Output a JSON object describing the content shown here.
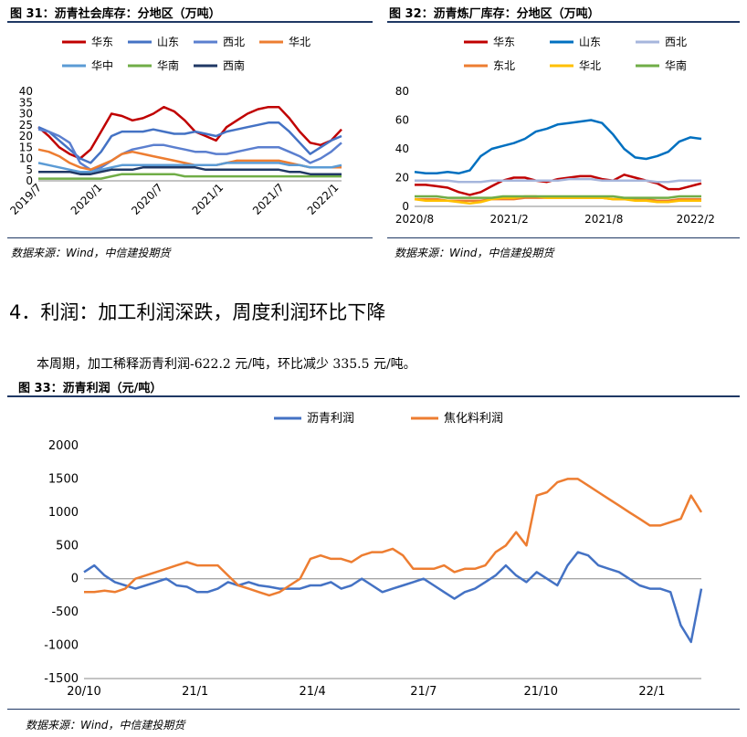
{
  "fig31": {
    "caption": "图 31：沥青社会库存：分地区（万吨）",
    "source": "数据来源：Wind，中信建投期货"
  },
  "fig32": {
    "caption": "图 32：沥青炼厂库存：分地区（万吨）",
    "source": "数据来源：Wind，中信建投期货"
  },
  "section": {
    "heading": "4．利润：加工利润深跌，周度利润环比下降",
    "body": "本周期，加工稀释沥青利润-622.2 元/吨，环比减少 335.5 元/吨。"
  },
  "fig33": {
    "caption": "图 33：沥青利润（元/吨）",
    "source": "数据来源：Wind，中信建投期货"
  },
  "chart_data": [
    {
      "type": "line",
      "id": "fig31",
      "x_ticks": [
        "2019/7",
        "2020/1",
        "2020/7",
        "2021/1",
        "2021/7",
        "2022/1"
      ],
      "ylim": [
        0,
        40
      ],
      "y_ticks": [
        "0",
        "5",
        "10",
        "15",
        "20",
        "25",
        "30",
        "35",
        "40"
      ],
      "legend_position": "top",
      "series": [
        {
          "name": "华东",
          "color": "#c00000",
          "values": [
            24,
            20,
            15,
            12,
            10,
            14,
            22,
            30,
            29,
            27,
            28,
            30,
            33,
            31,
            27,
            22,
            20,
            18,
            24,
            27,
            30,
            32,
            33,
            33,
            28,
            22,
            17,
            16,
            18,
            23
          ]
        },
        {
          "name": "山东",
          "color": "#4472c4",
          "values": [
            24,
            22,
            18,
            14,
            10,
            8,
            13,
            20,
            22,
            22,
            22,
            23,
            22,
            21,
            21,
            22,
            21,
            20,
            22,
            23,
            24,
            25,
            26,
            26,
            22,
            17,
            12,
            15,
            18,
            20
          ]
        },
        {
          "name": "西北",
          "color": "#5b7fcf",
          "values": [
            23,
            22,
            20,
            17,
            8,
            5,
            6,
            9,
            12,
            14,
            15,
            16,
            16,
            15,
            14,
            13,
            13,
            12,
            12,
            13,
            14,
            15,
            15,
            15,
            13,
            11,
            8,
            10,
            13,
            17
          ]
        },
        {
          "name": "华北",
          "color": "#ed7d31",
          "values": [
            14,
            13,
            11,
            8,
            6,
            5,
            7,
            9,
            12,
            13,
            12,
            11,
            10,
            9,
            8,
            7,
            7,
            7,
            8,
            9,
            9,
            9,
            9,
            9,
            8,
            7,
            6,
            6,
            6,
            6
          ]
        },
        {
          "name": "华中",
          "color": "#5b9bd5",
          "values": [
            8,
            7,
            6,
            5,
            4,
            4,
            5,
            6,
            7,
            7,
            7,
            7,
            7,
            7,
            7,
            7,
            7,
            7,
            8,
            8,
            8,
            8,
            8,
            8,
            7,
            7,
            6,
            6,
            6,
            7
          ]
        },
        {
          "name": "华南",
          "color": "#70ad47",
          "values": [
            1,
            1,
            1,
            1,
            1,
            1,
            1,
            2,
            3,
            3,
            3,
            3,
            3,
            3,
            2,
            2,
            2,
            2,
            2,
            2,
            2,
            2,
            2,
            2,
            2,
            2,
            2,
            2,
            2,
            2
          ]
        },
        {
          "name": "西南",
          "color": "#203864",
          "values": [
            4,
            4,
            4,
            4,
            3,
            3,
            4,
            5,
            5,
            5,
            6,
            6,
            6,
            6,
            6,
            6,
            5,
            5,
            5,
            5,
            5,
            5,
            5,
            5,
            4,
            4,
            3,
            3,
            3,
            3
          ]
        }
      ]
    },
    {
      "type": "line",
      "id": "fig32",
      "x_ticks": [
        "2020/8",
        "2021/2",
        "2021/8",
        "2022/2"
      ],
      "ylim": [
        0,
        80
      ],
      "y_ticks": [
        "0",
        "20",
        "40",
        "60",
        "80"
      ],
      "legend_position": "top",
      "series": [
        {
          "name": "华东",
          "color": "#c00000",
          "values": [
            15,
            15,
            14,
            13,
            10,
            8,
            10,
            14,
            18,
            20,
            20,
            18,
            17,
            19,
            20,
            21,
            21,
            19,
            18,
            22,
            20,
            18,
            16,
            12,
            12,
            14,
            16
          ]
        },
        {
          "name": "山东",
          "color": "#0070c0",
          "values": [
            24,
            23,
            23,
            24,
            23,
            25,
            35,
            40,
            42,
            44,
            47,
            52,
            54,
            57,
            58,
            59,
            60,
            58,
            50,
            40,
            34,
            33,
            35,
            38,
            45,
            48,
            47
          ]
        },
        {
          "name": "西北",
          "color": "#a6b6dc",
          "values": [
            18,
            18,
            18,
            18,
            17,
            17,
            17,
            18,
            18,
            18,
            18,
            18,
            18,
            18,
            19,
            19,
            19,
            18,
            18,
            18,
            18,
            18,
            17,
            17,
            18,
            18,
            18
          ]
        },
        {
          "name": "东北",
          "color": "#ed7d31",
          "values": [
            5,
            5,
            5,
            4,
            4,
            4,
            4,
            5,
            5,
            5,
            6,
            6,
            6,
            6,
            6,
            6,
            6,
            6,
            5,
            5,
            5,
            5,
            4,
            4,
            5,
            5,
            5
          ]
        },
        {
          "name": "华北",
          "color": "#ffc000",
          "values": [
            5,
            4,
            4,
            4,
            3,
            2,
            3,
            5,
            6,
            6,
            7,
            7,
            6,
            6,
            6,
            6,
            6,
            6,
            5,
            5,
            4,
            4,
            3,
            3,
            4,
            4,
            4
          ]
        },
        {
          "name": "华南",
          "color": "#70ad47",
          "values": [
            7,
            7,
            7,
            6,
            6,
            6,
            6,
            6,
            7,
            7,
            7,
            7,
            7,
            7,
            7,
            7,
            7,
            7,
            7,
            6,
            6,
            6,
            6,
            6,
            7,
            7,
            7
          ]
        }
      ]
    },
    {
      "type": "line",
      "id": "fig33",
      "x_ticks": [
        "20/10",
        "21/1",
        "21/4",
        "21/7",
        "21/10",
        "22/1"
      ],
      "ylim": [
        -1500,
        2000
      ],
      "y_ticks": [
        "-1500",
        "-1000",
        "-500",
        "0",
        "500",
        "1000",
        "1500",
        "2000"
      ],
      "legend_position": "top",
      "series": [
        {
          "name": "沥青利润",
          "color": "#4472c4",
          "values": [
            100,
            200,
            50,
            -50,
            -100,
            -150,
            -100,
            -50,
            0,
            -100,
            -120,
            -200,
            -200,
            -150,
            -50,
            -100,
            -50,
            -100,
            -120,
            -150,
            -150,
            -150,
            -100,
            -100,
            -50,
            -150,
            -100,
            0,
            -100,
            -200,
            -150,
            -100,
            -50,
            0,
            -100,
            -200,
            -300,
            -200,
            -150,
            -50,
            50,
            200,
            50,
            -50,
            100,
            0,
            -100,
            200,
            400,
            350,
            200,
            150,
            100,
            0,
            -100,
            -150,
            -150,
            -200,
            -700,
            -950,
            -150
          ]
        },
        {
          "name": "焦化料利润",
          "color": "#ed7d31",
          "values": [
            -200,
            -200,
            -180,
            -200,
            -150,
            0,
            50,
            100,
            150,
            200,
            250,
            200,
            200,
            200,
            50,
            -100,
            -150,
            -200,
            -250,
            -200,
            -100,
            0,
            300,
            350,
            300,
            300,
            250,
            350,
            400,
            400,
            450,
            350,
            150,
            150,
            150,
            200,
            100,
            150,
            150,
            200,
            400,
            500,
            700,
            500,
            1250,
            1300,
            1450,
            1500,
            1500,
            1400,
            1300,
            1200,
            1100,
            1000,
            900,
            800,
            800,
            850,
            900,
            1250,
            1000
          ]
        }
      ]
    }
  ]
}
